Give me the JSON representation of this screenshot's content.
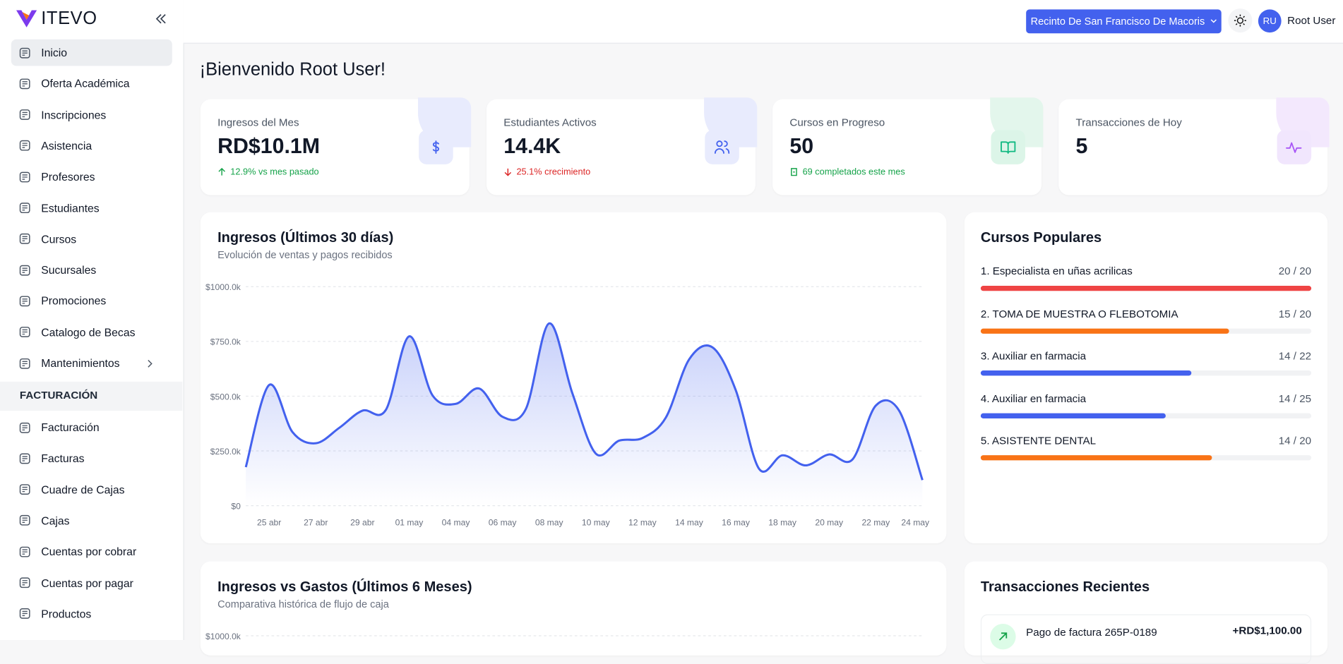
{
  "sidebar": {
    "brand": "ITEVO",
    "items": [
      "Inicio",
      "Oferta Académica",
      "Inscripciones",
      "Asistencia",
      "Profesores",
      "Estudiantes",
      "Cursos",
      "Sucursales",
      "Promociones",
      "Catalogo de Becas",
      "Mantenimientos"
    ],
    "section": "FACTURACIÓN",
    "billing_items": [
      "Facturación",
      "Facturas",
      "Cuadre de Cajas",
      "Cajas",
      "Cuentas por cobrar",
      "Cuentas por pagar",
      "Productos"
    ]
  },
  "header": {
    "branch": "Recinto De San Francisco De Macoris",
    "avatar": "RU",
    "user": "Root User"
  },
  "welcome": "¡Bienvenido Root User!",
  "stats": [
    {
      "label": "Ingresos del Mes",
      "value": "RD$10.1M",
      "change": "12.9% vs mes pasado"
    },
    {
      "label": "Estudiantes Activos",
      "value": "14.4K",
      "change": "25.1% crecimiento"
    },
    {
      "label": "Cursos en Progreso",
      "value": "50",
      "change": "69 completados este mes"
    },
    {
      "label": "Transacciones de Hoy",
      "value": "5"
    }
  ],
  "chart_data": [
    {
      "type": "line",
      "title": "Ingresos (Últimos 30 días)",
      "subtitle": "Evolución de ventas y pagos recibidos",
      "categories": [
        null,
        "25 abr",
        null,
        "27 abr",
        null,
        "29 abr",
        null,
        "01 may",
        null,
        "04 may",
        null,
        "06 may",
        null,
        "08 may",
        null,
        "10 may",
        null,
        "12 may",
        null,
        "14 may",
        null,
        "16 may",
        null,
        "18 may",
        null,
        "20 may",
        null,
        "22 may",
        null,
        "24 may"
      ],
      "series": [
        {
          "color": "#4361ee",
          "values": [
            176000,
            551000,
            336000,
            285000,
            355000,
            434000,
            437000,
            773000,
            504000,
            465000,
            535000,
            406000,
            441000,
            832000,
            512000,
            238000,
            297000,
            309000,
            402000,
            668000,
            723000,
            527000,
            168000,
            230000,
            184000,
            234000,
            211000,
            457000,
            434000,
            117000
          ]
        }
      ],
      "ylim": [
        0,
        1000000
      ],
      "yticks": [
        {
          "value": 0,
          "label": "$0"
        },
        {
          "value": 250000,
          "label": "$250.0k"
        },
        {
          "value": 500000,
          "label": "$500.0k"
        },
        {
          "value": 750000,
          "label": "$750.0k"
        },
        {
          "value": 1000000,
          "label": "$1000.0k"
        }
      ],
      "grid": true
    },
    {
      "type": "bar",
      "title": "Ingresos vs Gastos (Últimos 6 Meses)",
      "subtitle": "Comparativa histórica de flujo de caja",
      "yticks": [
        {
          "value": 1000000,
          "label": "$1000.0k"
        }
      ],
      "grid": true
    }
  ],
  "popular_courses": {
    "title": "Cursos Populares",
    "items": [
      {
        "name": "1. Especialista en uñas acrilicas",
        "enrolled": 20,
        "capacity": 20,
        "color": "#ef4444"
      },
      {
        "name": "2. TOMA DE MUESTRA O FLEBOTOMIA",
        "enrolled": 15,
        "capacity": 20,
        "color": "#f97316"
      },
      {
        "name": "3. Auxiliar en farmacia",
        "enrolled": 14,
        "capacity": 22,
        "color": "#4361ee"
      },
      {
        "name": "4. Auxiliar en farmacia",
        "enrolled": 14,
        "capacity": 25,
        "color": "#4361ee"
      },
      {
        "name": "5. ASISTENTE DENTAL",
        "enrolled": 14,
        "capacity": 20,
        "color": "#f97316"
      }
    ]
  },
  "recent_transactions": {
    "title": "Transacciones Recientes",
    "items": [
      {
        "description": "Pago de factura 265P-0189",
        "amount": "+RD$1,100.00"
      }
    ]
  }
}
